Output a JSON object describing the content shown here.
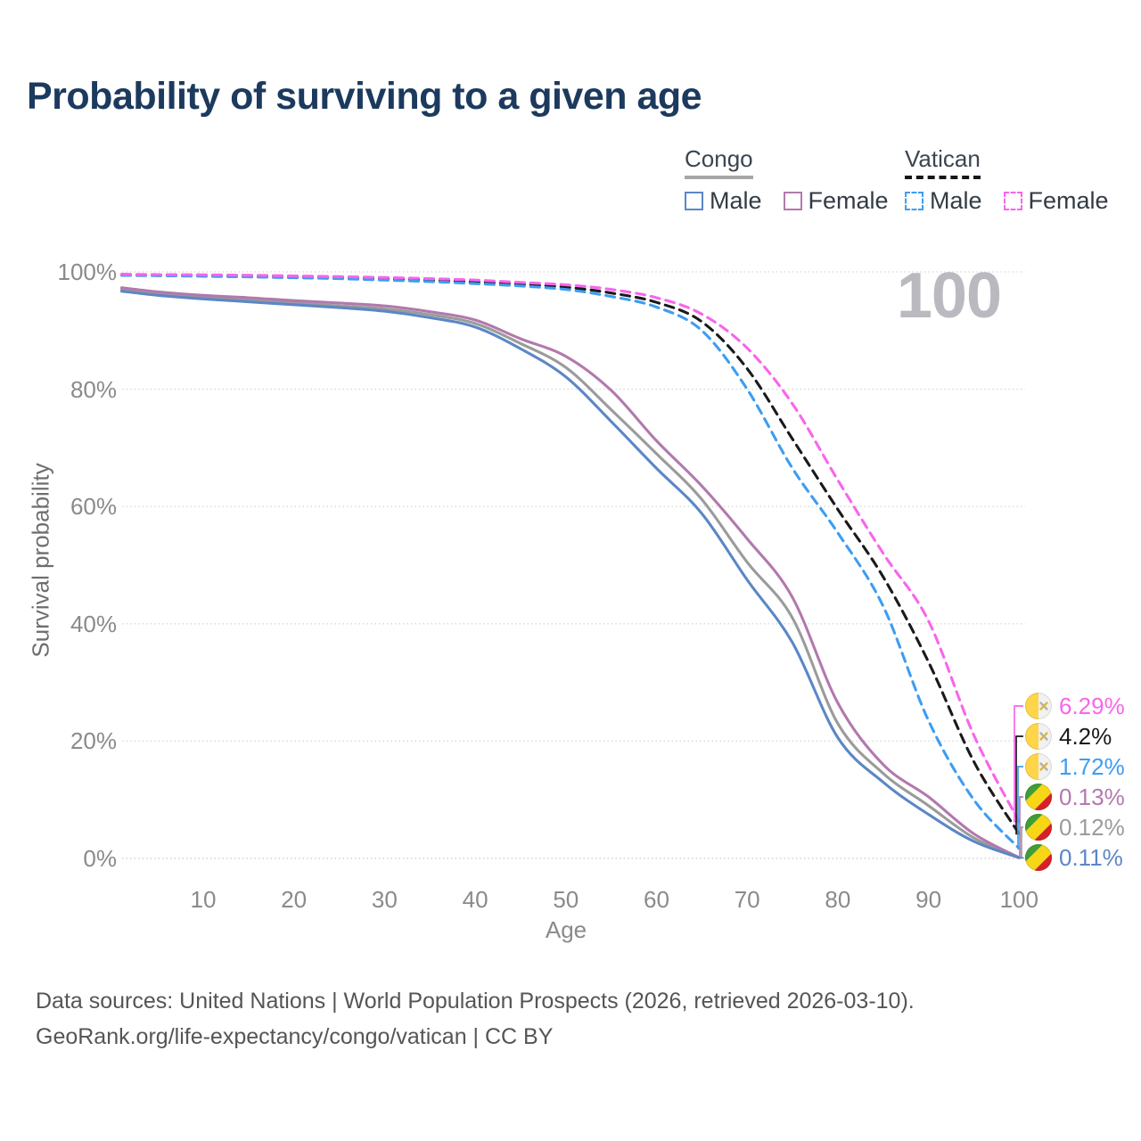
{
  "title": "Probability of surviving to a given age",
  "watermark": "100",
  "legend": {
    "groups": [
      {
        "name": "Congo",
        "line_style": "solid",
        "underline_color": "#a6a6a6",
        "items": [
          {
            "label": "Male",
            "color": "#5b87c5"
          },
          {
            "label": "Female",
            "color": "#b279ad"
          }
        ]
      },
      {
        "name": "Vatican",
        "line_style": "dashed",
        "underline_color": "#161616",
        "items": [
          {
            "label": "Male",
            "color": "#3d9df2"
          },
          {
            "label": "Female",
            "color": "#f865ec"
          }
        ]
      }
    ]
  },
  "chart_data": {
    "type": "line",
    "title": "Probability of surviving to a given age",
    "xlabel": "Age",
    "ylabel": "Survival probability",
    "xlim": [
      0,
      100
    ],
    "ylim": [
      0,
      100
    ],
    "grid": "horizontal-dotted",
    "legend_position": "top-right",
    "x_ticks": [
      10,
      20,
      30,
      40,
      50,
      60,
      70,
      80,
      90,
      100
    ],
    "y_ticks": [
      {
        "label": "0%",
        "pct": 0
      },
      {
        "label": "20%",
        "pct": 20
      },
      {
        "label": "40%",
        "pct": 40
      },
      {
        "label": "60%",
        "pct": 60
      },
      {
        "label": "80%",
        "pct": 80
      },
      {
        "label": "100%",
        "pct": 100
      }
    ],
    "ages": [
      1,
      5,
      10,
      15,
      20,
      25,
      30,
      35,
      40,
      45,
      50,
      55,
      60,
      65,
      70,
      75,
      80,
      85,
      90,
      95,
      100
    ],
    "series": [
      {
        "id": "congo-both",
        "country": "Congo",
        "name": "Congo — Both sexes",
        "style": "solid",
        "color": "#9b9b9b",
        "end_value": 0.12,
        "values": [
          97.0,
          96.3,
          95.7,
          95.2,
          94.7,
          94.2,
          93.7,
          92.7,
          91.2,
          87.8,
          83.7,
          76.5,
          69.0,
          61.2,
          50.5,
          41.0,
          23.0,
          14.5,
          9.0,
          3.5,
          0.12
        ]
      },
      {
        "id": "congo-female",
        "country": "Congo",
        "name": "Congo — Female",
        "style": "solid",
        "color": "#b279ad",
        "end_value": 0.13,
        "values": [
          97.3,
          96.6,
          96.0,
          95.6,
          95.1,
          94.7,
          94.2,
          93.2,
          91.8,
          88.6,
          85.6,
          79.8,
          71.2,
          63.5,
          54.5,
          44.5,
          26.5,
          16.0,
          10.5,
          4.2,
          0.13
        ]
      },
      {
        "id": "congo-male",
        "country": "Congo",
        "name": "Congo — Male",
        "style": "solid",
        "color": "#5b87c5",
        "end_value": 0.11,
        "values": [
          96.7,
          96.0,
          95.4,
          94.9,
          94.4,
          93.9,
          93.3,
          92.2,
          90.6,
          86.9,
          82.1,
          74.5,
          66.5,
          58.8,
          47.5,
          36.8,
          20.6,
          13.0,
          7.5,
          2.9,
          0.11
        ]
      },
      {
        "id": "vatican-both",
        "country": "Vatican",
        "name": "Vatican — Both sexes",
        "style": "dashed",
        "color": "#1a1a1a",
        "end_value": 4.2,
        "values": [
          99.5,
          99.45,
          99.38,
          99.3,
          99.2,
          99.05,
          98.85,
          98.6,
          98.3,
          97.9,
          97.4,
          96.4,
          94.8,
          91.5,
          83.5,
          71.5,
          59.5,
          48.0,
          33.5,
          16.5,
          4.2
        ]
      },
      {
        "id": "vatican-male",
        "country": "Vatican",
        "name": "Vatican — Male",
        "style": "dashed",
        "color": "#3d9df2",
        "end_value": 1.72,
        "values": [
          99.4,
          99.35,
          99.25,
          99.15,
          99.0,
          98.85,
          98.6,
          98.35,
          98.0,
          97.6,
          97.0,
          95.8,
          94.0,
          90.0,
          80.0,
          66.5,
          55.5,
          43.0,
          23.5,
          10.0,
          1.72
        ]
      },
      {
        "id": "vatican-female",
        "country": "Vatican",
        "name": "Vatican — Female",
        "style": "dashed",
        "color": "#f865ec",
        "end_value": 6.29,
        "values": [
          99.6,
          99.55,
          99.5,
          99.42,
          99.32,
          99.2,
          99.05,
          98.85,
          98.6,
          98.2,
          97.8,
          97.0,
          95.6,
          92.8,
          87.0,
          77.5,
          64.5,
          52.0,
          40.5,
          21.0,
          6.29
        ]
      }
    ],
    "end_labels": [
      {
        "series": "vatican-female",
        "text": "6.29%",
        "value": 6.29,
        "color": "#f865ec",
        "flag": "vatican"
      },
      {
        "series": "vatican-both",
        "text": "4.2%",
        "value": 4.2,
        "color": "#1a1a1a",
        "flag": "vatican"
      },
      {
        "series": "vatican-male",
        "text": "1.72%",
        "value": 1.72,
        "color": "#3d9df2",
        "flag": "vatican"
      },
      {
        "series": "congo-female",
        "text": "0.13%",
        "value": 0.13,
        "color": "#b279ad",
        "flag": "congo"
      },
      {
        "series": "congo-both",
        "text": "0.12%",
        "value": 0.12,
        "color": "#9b9b9b",
        "flag": "congo"
      },
      {
        "series": "congo-male",
        "text": "0.11%",
        "value": 0.11,
        "color": "#5b87c5",
        "flag": "congo"
      }
    ],
    "flag_colors": {
      "vatican": {
        "left": "#ffd54a",
        "right": "#f1f1f1",
        "key_gold": "#e0b63a",
        "key_silver": "#b0b0b0"
      },
      "congo": {
        "green": "#3f9d3a",
        "yellow": "#f7d618",
        "red": "#d7202c"
      }
    }
  },
  "footer": {
    "line1": "Data sources: United Nations | World Population Prospects (2026, retrieved 2026-03-10).",
    "line2": "GeoRank.org/life-expectancy/congo/vatican | CC BY"
  }
}
